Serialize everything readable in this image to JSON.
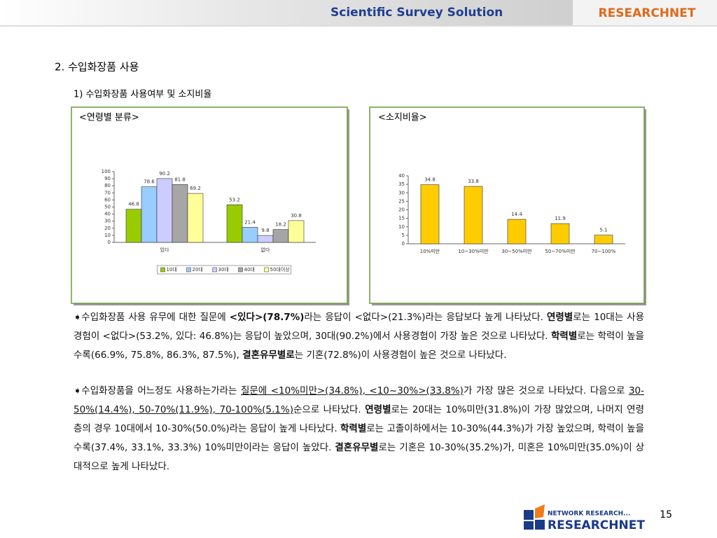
{
  "header": {
    "tagline": "Scientific Survey Solution",
    "brand": "RESEARCHNET"
  },
  "section_title": "2. 수입화장품 사용",
  "subsection_title": "1) 수입화장품 사용여부 및 소지비율",
  "chart_data": [
    {
      "type": "bar",
      "title": "<연령별 분류>",
      "categories": [
        "있다",
        "없다"
      ],
      "series": [
        {
          "name": "10대",
          "color": "#99cc00",
          "values": [
            46.8,
            53.2
          ]
        },
        {
          "name": "20대",
          "color": "#99ccff",
          "values": [
            78.6,
            21.4
          ]
        },
        {
          "name": "30대",
          "color": "#ccccff",
          "values": [
            90.2,
            9.8
          ]
        },
        {
          "name": "40대",
          "color": "#a6a6a6",
          "values": [
            81.8,
            18.2
          ]
        },
        {
          "name": "50대이상",
          "color": "#ffff99",
          "values": [
            69.2,
            30.8
          ]
        }
      ],
      "ylim": [
        0,
        100
      ],
      "yticks": [
        0,
        10,
        20,
        30,
        40,
        50,
        60,
        70,
        80,
        90,
        100
      ],
      "legend": "bottom"
    },
    {
      "type": "bar",
      "title": "<소지비율>",
      "categories": [
        "10%미만",
        "10~30%미만",
        "30~50%미만",
        "50~70%미만",
        "70~100%"
      ],
      "values": [
        34.8,
        33.8,
        14.4,
        11.9,
        5.1
      ],
      "color": "#ffcc00",
      "ylim": [
        0,
        40
      ],
      "yticks": [
        0,
        5,
        10,
        15,
        20,
        25,
        30,
        35,
        40
      ]
    }
  ],
  "paragraphs": [
    {
      "runs": [
        {
          "text": "➧수입화장품 사용 유무에 대한 질문에 "
        },
        {
          "text": "<있다>(78.7%)",
          "bold": true
        },
        {
          "text": "라는 응답이 <없다>(21.3%)라는 응답보다 높게 나타났다. "
        },
        {
          "text": "연령별",
          "bold": true
        },
        {
          "text": "로는 10대는 사용경험이 <없다>(53.2%, 있다: 46.8%)는 응답이 높았으며, 30대(90.2%)에서 사용경험이 가장 높은 것으로 나타났다. "
        },
        {
          "text": "학력별",
          "bold": true
        },
        {
          "text": "로는 학력이 높을 수록(66.9%, 75.8%, 86.3%, 87.5%), "
        },
        {
          "text": "결혼유무별로",
          "bold": true
        },
        {
          "text": "는 기혼(72.8%)이 사용경험이 높은 것으로 나타났다."
        }
      ]
    },
    {
      "runs": [
        {
          "text": "➧수입화장품을 어느정도 사용하는가라는 "
        },
        {
          "text": "질문에 <10%미만>(34.8%), <10~30%>(33.8%)",
          "underline": true
        },
        {
          "text": "가 가장 많은 것으로 나타났다. 다음으로 "
        },
        {
          "text": "30-50%(14.4%), 50-70%(11.9%), 70-100%(5.1%)",
          "underline": true
        },
        {
          "text": "순으로 나타났다. "
        },
        {
          "text": "연령별",
          "bold": true
        },
        {
          "text": "로는 20대는 10%미만(31.8%)이 가장 많았으며, 나머지 연령층의 경우 10대에서 10-30%(50.0%)라는 응답이 높게 나타났다. "
        },
        {
          "text": "학력별",
          "bold": true
        },
        {
          "text": "로는 고졸이하에서는 10-30%(44.3%)가 가장 높았으며, 학력이 높을 수록(37.4%, 33.1%, 33.3%) 10%미만이라는 응답이 높았다. "
        },
        {
          "text": "결혼유무별",
          "bold": true
        },
        {
          "text": "로는 기혼은 10-30%(35.2%)가, 미혼은 10%미만(35.0%)이 상대적으로 높게 나타났다."
        }
      ]
    }
  ],
  "footer": {
    "logo_top": "NETWORK RESEARCH...",
    "logo_bottom": "RESEARCHNET",
    "page_number": "15"
  }
}
